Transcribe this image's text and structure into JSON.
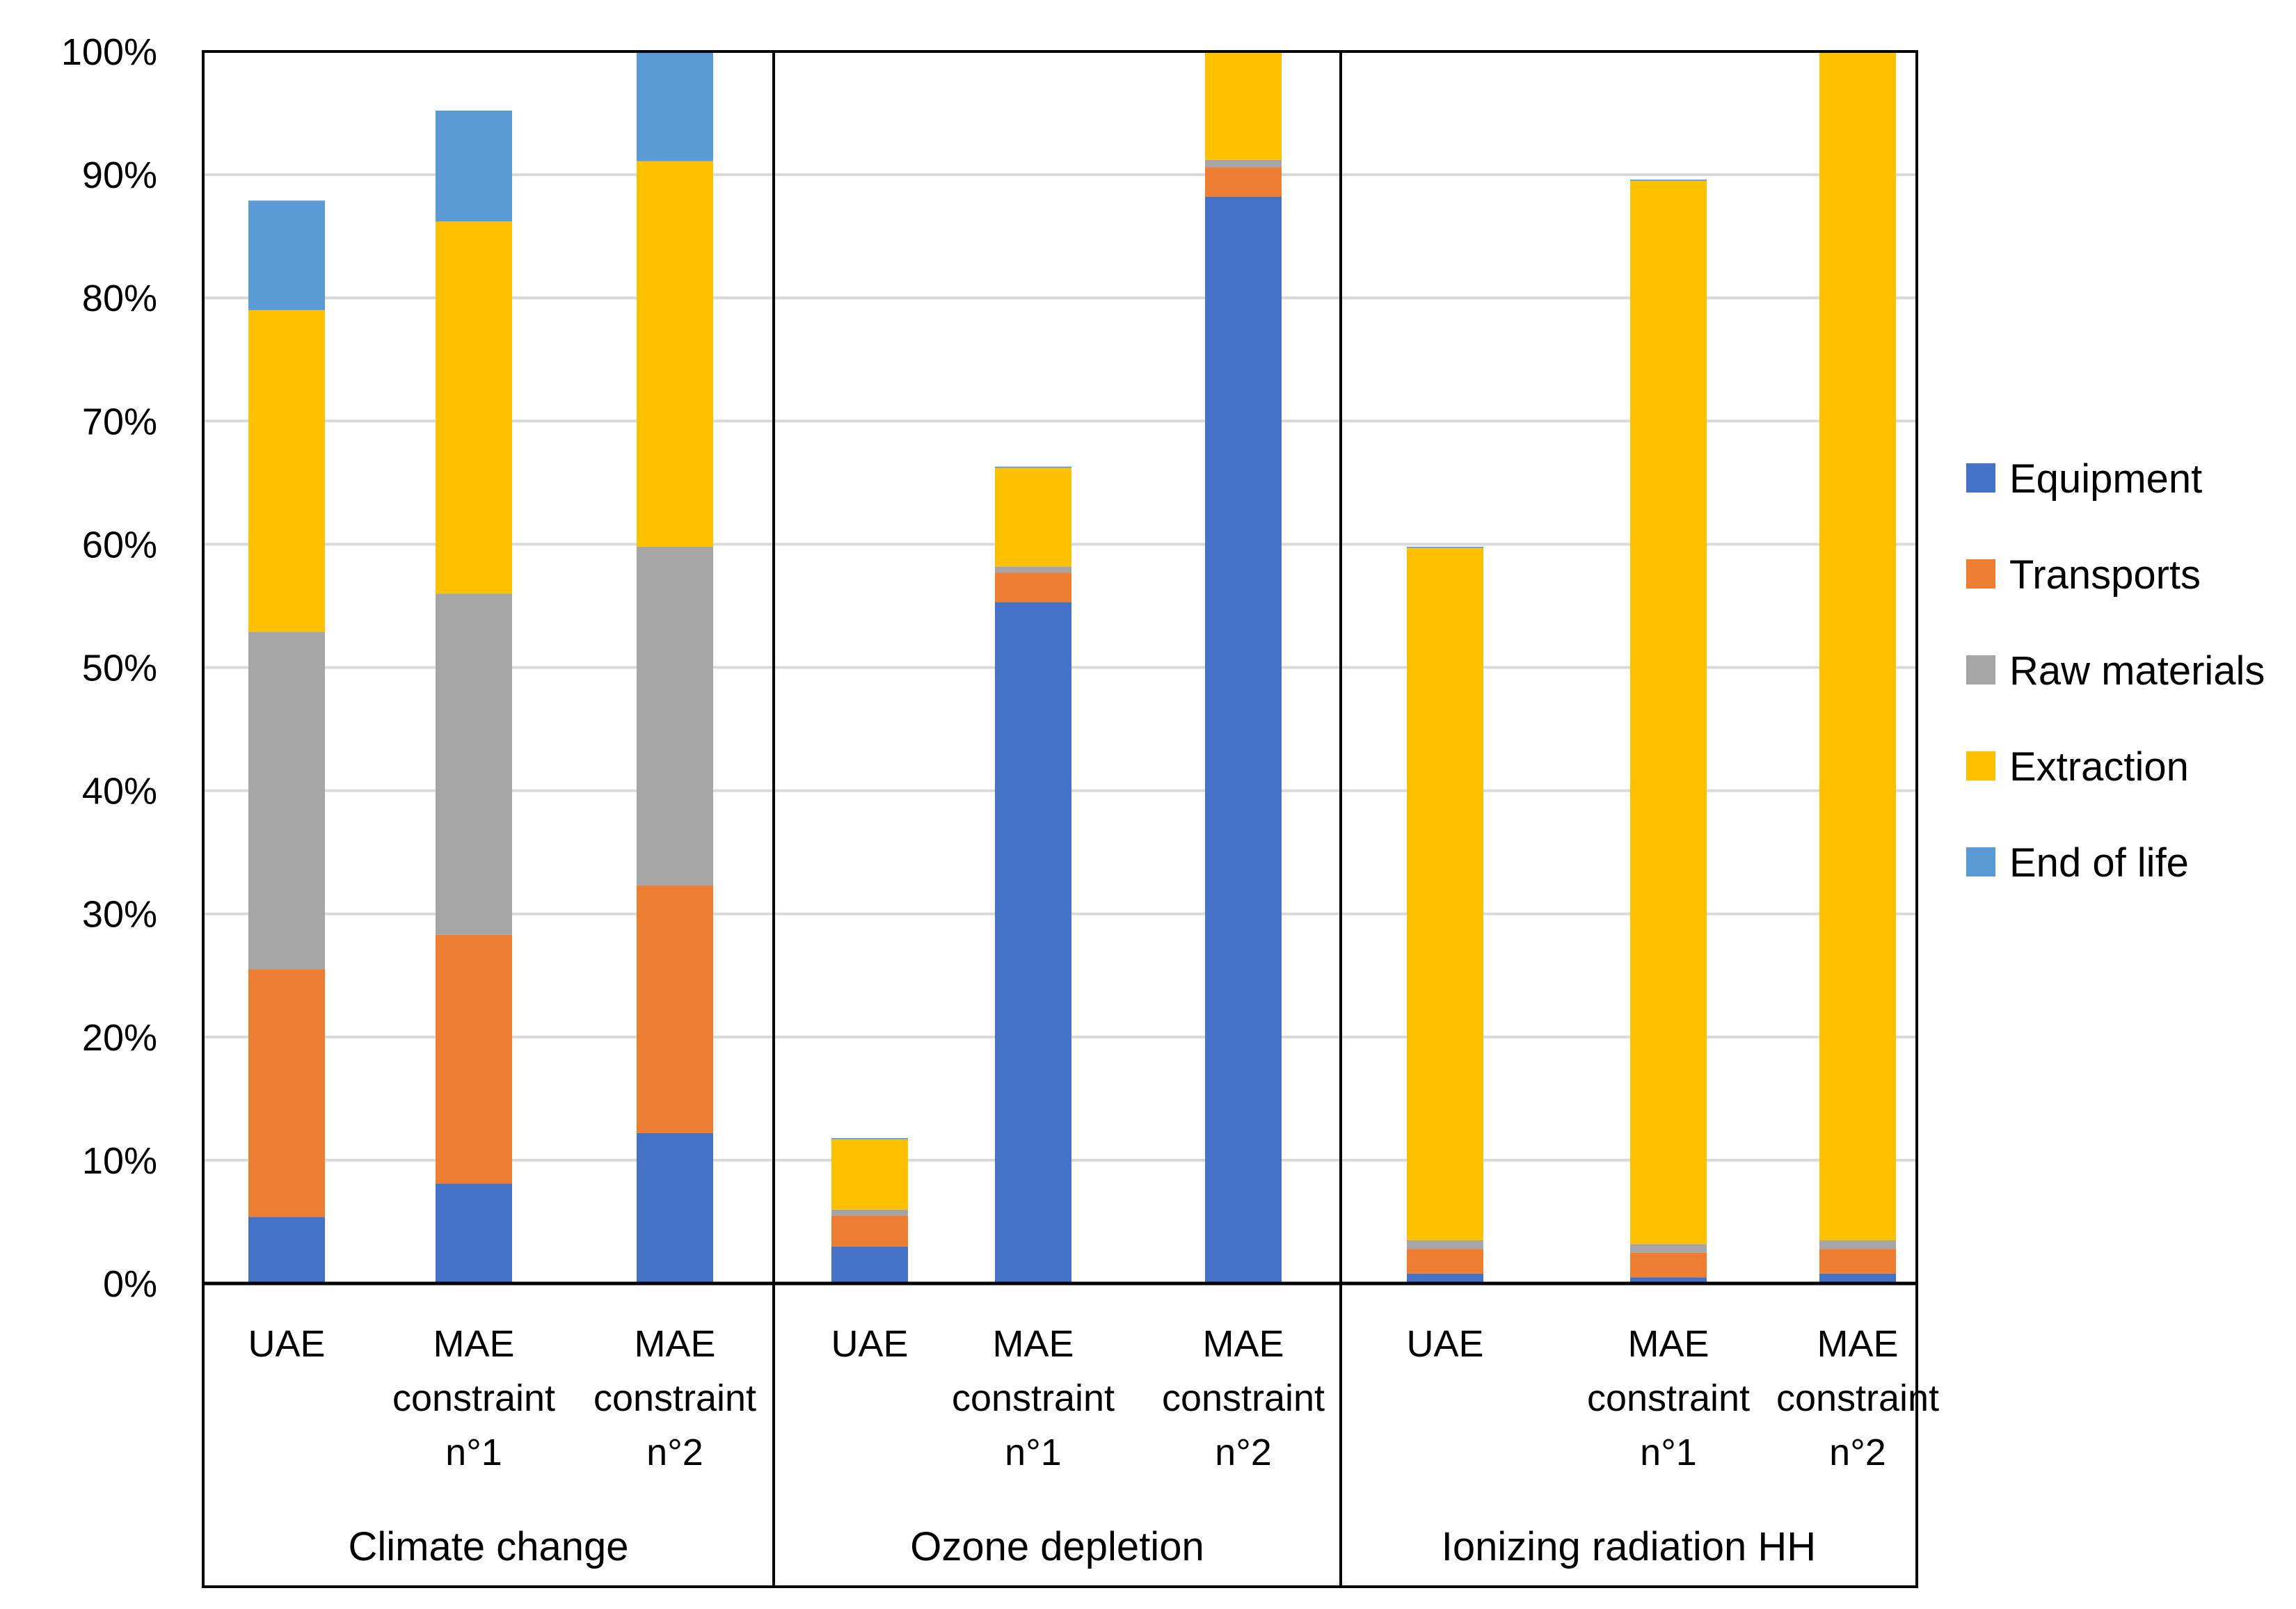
{
  "chart_data": {
    "type": "bar",
    "stacked": true,
    "normalized": "percent",
    "ylim": [
      0,
      100
    ],
    "y_ticks": [
      "0%",
      "10%",
      "20%",
      "30%",
      "40%",
      "50%",
      "60%",
      "70%",
      "80%",
      "90%",
      "100%"
    ],
    "grid": true,
    "legend_position": "right",
    "groups": [
      {
        "name": "Climate change",
        "categories": [
          [
            "UAE"
          ],
          [
            "MAE",
            "constraint",
            "n°1"
          ],
          [
            "MAE",
            "constraint",
            "n°2"
          ]
        ]
      },
      {
        "name": "Ozone depletion",
        "categories": [
          [
            "UAE"
          ],
          [
            "MAE",
            "constraint",
            "n°1"
          ],
          [
            "MAE",
            "constraint",
            "n°2"
          ]
        ]
      },
      {
        "name": "Ionizing radiation HH",
        "categories": [
          [
            "UAE"
          ],
          [
            "MAE",
            "constraint",
            "n°1"
          ],
          [
            "MAE",
            "constraint",
            "n°2"
          ]
        ]
      }
    ],
    "series": [
      {
        "name": "Equipment",
        "color": "#4472C4",
        "values": [
          5.4,
          8.1,
          12.2,
          3.0,
          55.3,
          88.2,
          0.8,
          0.5,
          0.8
        ]
      },
      {
        "name": "Transports",
        "color": "#ED7D31",
        "values": [
          20.1,
          20.2,
          20.1,
          2.5,
          2.4,
          2.4,
          2.0,
          2.0,
          2.0
        ]
      },
      {
        "name": "Raw materials",
        "color": "#A5A5A5",
        "values": [
          27.4,
          27.7,
          27.5,
          0.5,
          0.5,
          0.6,
          0.7,
          0.7,
          0.7
        ]
      },
      {
        "name": "Extraction",
        "color": "#FFC000",
        "values": [
          26.1,
          30.2,
          31.3,
          5.7,
          8.0,
          8.8,
          56.2,
          86.3,
          96.5
        ]
      },
      {
        "name": "End of life",
        "color": "#5B9BD5",
        "values": [
          8.9,
          9.0,
          8.9,
          0.1,
          0.1,
          0.0,
          0.1,
          0.1,
          0.0
        ]
      }
    ]
  }
}
